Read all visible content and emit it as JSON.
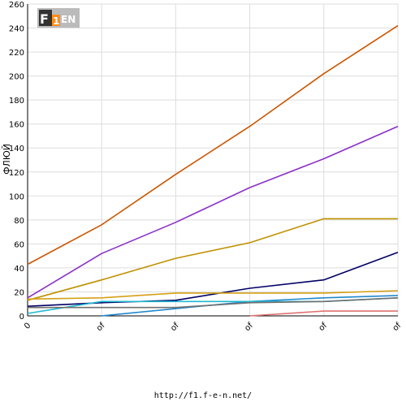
{
  "footer": {
    "url": "http://f1.f-e-n.net/"
  },
  "logo": {
    "text": "F1EN",
    "icon": "f1en-logo"
  },
  "chart_data": {
    "type": "line",
    "title": "",
    "xlabel": "",
    "ylabel": "ФЛЮЙ",
    "ylim": [
      0,
      260
    ],
    "yticks": [
      0,
      20,
      40,
      60,
      80,
      100,
      120,
      140,
      160,
      180,
      200,
      220,
      240,
      260
    ],
    "categories": [
      "0",
      "of",
      "of",
      "of",
      "of",
      "of"
    ],
    "grid": true,
    "legend": "none",
    "series": [
      {
        "color": "#cc5500",
        "values": [
          43,
          76,
          118,
          158,
          202,
          242
        ]
      },
      {
        "color": "#8b2fc9",
        "values": [
          15,
          52,
          78,
          107,
          131,
          158
        ]
      },
      {
        "color": "#c09000",
        "values": [
          13,
          30,
          48,
          61,
          81,
          81
        ]
      },
      {
        "color": "#000066",
        "values": [
          8,
          11,
          13,
          23,
          30,
          53
        ]
      },
      {
        "color": "#d4a017",
        "values": [
          14,
          15,
          19,
          19,
          19,
          21
        ]
      },
      {
        "color": "#2288cc",
        "values": [
          null,
          0,
          6,
          12,
          15,
          17
        ]
      },
      {
        "color": "#20b8d0",
        "values": [
          2,
          12,
          12,
          12,
          12,
          15
        ]
      },
      {
        "color": "#707070",
        "values": [
          7,
          7,
          7,
          11,
          12,
          15
        ]
      },
      {
        "color": "#e07070",
        "values": [
          null,
          null,
          null,
          0,
          4,
          4
        ]
      }
    ]
  }
}
